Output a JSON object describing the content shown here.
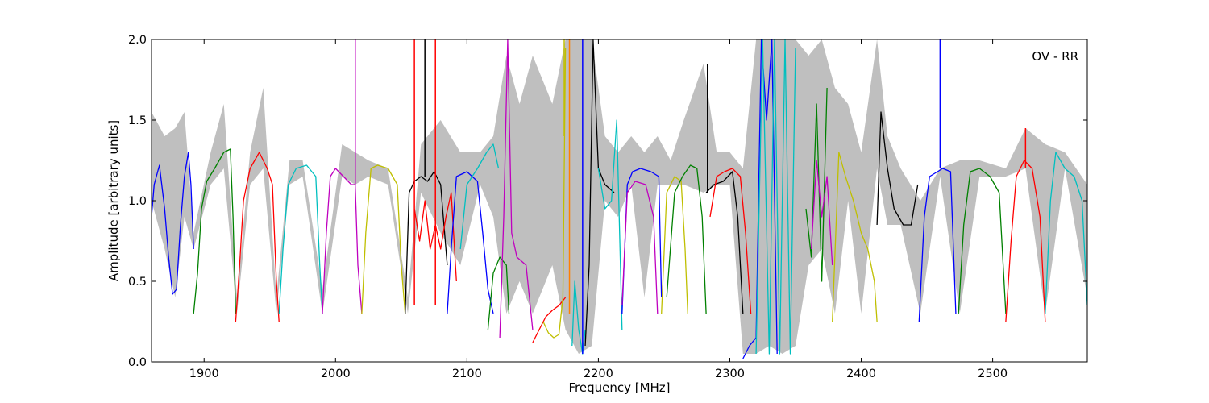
{
  "chart_data": {
    "type": "line",
    "title": "",
    "xlabel": "Frequency [MHz]",
    "ylabel": "Amplitude [arbitrary units]",
    "annotation": "OV - RR",
    "xlim": [
      1860,
      2572
    ],
    "ylim": [
      0.0,
      2.0
    ],
    "xticks": [
      1900,
      2000,
      2100,
      2200,
      2300,
      2400,
      2500
    ],
    "yticks": [
      0.0,
      0.5,
      1.0,
      1.5,
      2.0
    ],
    "xtick_labels": [
      "1900",
      "2000",
      "2100",
      "2200",
      "2300",
      "2400",
      "2500"
    ],
    "ytick_labels": [
      "0.0",
      "0.5",
      "1.0",
      "1.5",
      "2.0"
    ],
    "grid": false,
    "legend": "none",
    "background_envelope": {
      "color": "#bfbfbf",
      "x": [
        1860,
        1870,
        1878,
        1885,
        1892,
        1905,
        1915,
        1925,
        1935,
        1945,
        1955,
        1965,
        1975,
        1990,
        2005,
        2015,
        2025,
        2040,
        2055,
        2065,
        2080,
        2095,
        2110,
        2120,
        2130,
        2140,
        2150,
        2165,
        2175,
        2185,
        2195,
        2205,
        2215,
        2225,
        2235,
        2245,
        2255,
        2265,
        2280,
        2290,
        2300,
        2310,
        2320,
        2330,
        2340,
        2350,
        2360,
        2370,
        2380,
        2390,
        2400,
        2412,
        2420,
        2430,
        2445,
        2460,
        2475,
        2490,
        2510,
        2525,
        2540,
        2555,
        2572
      ],
      "upper": [
        1.55,
        1.4,
        1.45,
        1.55,
        0.8,
        1.3,
        1.6,
        0.4,
        1.3,
        1.7,
        0.4,
        1.25,
        1.25,
        0.45,
        1.35,
        1.3,
        1.25,
        1.2,
        0.4,
        1.35,
        1.5,
        1.3,
        1.3,
        1.4,
        1.9,
        1.6,
        1.9,
        1.6,
        2.0,
        2.0,
        2.0,
        1.4,
        1.3,
        1.4,
        1.3,
        1.4,
        1.25,
        1.5,
        1.85,
        1.3,
        1.3,
        1.2,
        2.0,
        2.0,
        2.0,
        2.0,
        1.9,
        2.0,
        1.7,
        1.6,
        1.3,
        2.0,
        1.4,
        1.2,
        1.0,
        1.2,
        1.25,
        1.25,
        1.2,
        1.45,
        1.35,
        1.3,
        1.1
      ],
      "lower": [
        1.0,
        0.7,
        0.4,
        0.9,
        0.7,
        1.1,
        1.2,
        0.3,
        1.1,
        1.2,
        0.3,
        1.1,
        1.15,
        0.3,
        1.15,
        1.1,
        1.15,
        1.1,
        0.3,
        1.05,
        0.8,
        0.6,
        1.1,
        0.9,
        0.3,
        0.5,
        0.3,
        0.6,
        0.2,
        0.05,
        0.1,
        1.0,
        0.9,
        1.1,
        0.4,
        1.1,
        1.1,
        1.1,
        1.05,
        1.1,
        1.1,
        0.05,
        0.05,
        0.1,
        0.05,
        0.1,
        0.6,
        0.7,
        0.3,
        1.0,
        0.3,
        1.2,
        0.85,
        0.85,
        0.3,
        1.15,
        0.3,
        1.15,
        1.15,
        1.2,
        0.3,
        1.2,
        0.4
      ]
    },
    "series": [
      {
        "color": "#0000ff",
        "x": [
          1860,
          1862,
          1866,
          1870,
          1873,
          1876,
          1879,
          1882,
          1885,
          1888,
          1890,
          1892
        ],
        "y": [
          0.9,
          1.1,
          1.22,
          0.95,
          0.65,
          0.42,
          0.45,
          0.85,
          1.15,
          1.3,
          1.1,
          0.7
        ]
      },
      {
        "color": "#008000",
        "x": [
          1892,
          1895,
          1898,
          1902,
          1908,
          1915,
          1920,
          1922,
          1924
        ],
        "y": [
          0.3,
          0.55,
          0.95,
          1.12,
          1.2,
          1.3,
          1.32,
          0.9,
          0.3
        ]
      },
      {
        "color": "#ff0000",
        "x": [
          1924,
          1927,
          1930,
          1935,
          1942,
          1948,
          1952,
          1955,
          1957
        ],
        "y": [
          0.25,
          0.6,
          1.0,
          1.2,
          1.3,
          1.2,
          1.1,
          0.5,
          0.25
        ]
      },
      {
        "color": "#00bfbf",
        "x": [
          1957,
          1960,
          1964,
          1970,
          1978,
          1985,
          1988,
          1990
        ],
        "y": [
          0.3,
          0.7,
          1.1,
          1.2,
          1.22,
          1.15,
          0.6,
          0.3
        ]
      },
      {
        "color": "#bf00bf",
        "x": [
          1990,
          1993,
          1996,
          2000,
          2006,
          2012,
          2015,
          2017,
          2020
        ],
        "y": [
          0.3,
          0.8,
          1.15,
          1.2,
          1.15,
          1.1,
          1.1,
          0.6,
          0.3
        ]
      },
      {
        "color": "#bfbf00",
        "x": [
          2020,
          2023,
          2027,
          2032,
          2040,
          2047,
          2050,
          2053
        ],
        "y": [
          0.3,
          0.8,
          1.2,
          1.22,
          1.2,
          1.1,
          0.6,
          0.3
        ]
      },
      {
        "color": "#000000",
        "x": [
          2053,
          2056,
          2060,
          2065,
          2070,
          2075,
          2080,
          2085
        ],
        "y": [
          0.3,
          1.05,
          1.12,
          1.15,
          1.12,
          1.18,
          1.1,
          0.6
        ]
      },
      {
        "color": "#ff0000",
        "x": [
          2060,
          2064,
          2068,
          2072,
          2076,
          2080,
          2084,
          2088,
          2092
        ],
        "y": [
          0.95,
          0.75,
          1.0,
          0.7,
          0.85,
          0.7,
          0.9,
          1.05,
          0.5
        ]
      },
      {
        "color": "#0000ff",
        "x": [
          2085,
          2088,
          2092,
          2100,
          2108,
          2112,
          2116,
          2120
        ],
        "y": [
          0.3,
          0.7,
          1.15,
          1.18,
          1.12,
          0.8,
          0.45,
          0.3
        ]
      },
      {
        "color": "#00bfbf",
        "x": [
          2095,
          2100,
          2108,
          2115,
          2120,
          2124
        ],
        "y": [
          0.7,
          1.1,
          1.2,
          1.3,
          1.35,
          1.2
        ]
      },
      {
        "color": "#008000",
        "x": [
          2116,
          2120,
          2125,
          2130,
          2132
        ],
        "y": [
          0.2,
          0.55,
          0.65,
          0.6,
          0.3
        ]
      },
      {
        "color": "#bf00bf",
        "x": [
          2125,
          2128,
          2131,
          2134,
          2138,
          2145,
          2150
        ],
        "y": [
          0.15,
          0.9,
          2.0,
          0.8,
          0.65,
          0.6,
          0.2
        ]
      },
      {
        "color": "#ff0000",
        "x": [
          2150,
          2155,
          2160,
          2165,
          2170,
          2175
        ],
        "y": [
          0.12,
          0.2,
          0.28,
          0.32,
          0.35,
          0.4
        ]
      },
      {
        "color": "#bfbf00",
        "x": [
          2158,
          2162,
          2166,
          2170,
          2173,
          2175
        ],
        "y": [
          0.25,
          0.18,
          0.15,
          0.17,
          0.4,
          1.95
        ]
      },
      {
        "color": "#00bfbf",
        "x": [
          2180,
          2182,
          2185,
          2188,
          2190
        ],
        "y": [
          0.1,
          0.5,
          0.2,
          0.05,
          0.2
        ]
      },
      {
        "color": "#000000",
        "x": [
          2190,
          2193,
          2196,
          2200,
          2205,
          2212
        ],
        "y": [
          0.1,
          0.6,
          2.0,
          1.2,
          1.1,
          1.05
        ]
      },
      {
        "color": "#00bfbf",
        "x": [
          2200,
          2205,
          2210,
          2214,
          2218
        ],
        "y": [
          1.2,
          0.95,
          1.0,
          1.5,
          0.2
        ]
      },
      {
        "color": "#0000ff",
        "x": [
          2218,
          2222,
          2226,
          2232,
          2240,
          2246,
          2248
        ],
        "y": [
          0.3,
          1.1,
          1.18,
          1.2,
          1.18,
          1.15,
          0.4
        ]
      },
      {
        "color": "#bf00bf",
        "x": [
          2218,
          2222,
          2228,
          2236,
          2242,
          2245
        ],
        "y": [
          0.35,
          1.05,
          1.12,
          1.1,
          0.9,
          0.3
        ]
      },
      {
        "color": "#bfbf00",
        "x": [
          2248,
          2252,
          2258,
          2263,
          2266,
          2268
        ],
        "y": [
          0.3,
          1.05,
          1.15,
          1.12,
          0.7,
          0.3
        ]
      },
      {
        "color": "#008000",
        "x": [
          2252,
          2258,
          2264,
          2270,
          2275,
          2279,
          2282
        ],
        "y": [
          0.4,
          1.05,
          1.15,
          1.22,
          1.2,
          0.9,
          0.3
        ]
      },
      {
        "color": "#000000",
        "x": [
          2282,
          2288,
          2295,
          2302,
          2306,
          2310
        ],
        "y": [
          1.05,
          1.1,
          1.12,
          1.18,
          0.9,
          0.3
        ]
      },
      {
        "color": "#ff0000",
        "x": [
          2285,
          2290,
          2296,
          2302,
          2308,
          2312,
          2316
        ],
        "y": [
          0.9,
          1.15,
          1.18,
          1.2,
          1.15,
          0.8,
          0.3
        ]
      },
      {
        "color": "#0000ff",
        "x": [
          2310,
          2315,
          2320,
          2324,
          2328,
          2332,
          2336
        ],
        "y": [
          0.02,
          0.1,
          0.15,
          2.0,
          1.5,
          2.0,
          0.05
        ]
      },
      {
        "color": "#00bfbf",
        "x": [
          2320,
          2325,
          2330,
          2334,
          2338,
          2342,
          2346,
          2350
        ],
        "y": [
          0.05,
          2.0,
          0.05,
          2.0,
          0.05,
          2.0,
          0.05,
          1.95
        ]
      },
      {
        "color": "#008000",
        "x": [
          2358,
          2362,
          2366,
          2370,
          2374
        ],
        "y": [
          0.95,
          0.65,
          1.6,
          0.5,
          1.7
        ]
      },
      {
        "color": "#bf00bf",
        "x": [
          2362,
          2366,
          2370,
          2374,
          2378
        ],
        "y": [
          0.7,
          1.25,
          0.9,
          1.15,
          0.6
        ]
      },
      {
        "color": "#bfbf00",
        "x": [
          2378,
          2383,
          2388,
          2394,
          2400,
          2405,
          2410,
          2412
        ],
        "y": [
          0.25,
          1.3,
          1.15,
          1.0,
          0.8,
          0.7,
          0.5,
          0.25
        ]
      },
      {
        "color": "#000000",
        "x": [
          2412,
          2415,
          2420,
          2425,
          2432,
          2438,
          2443
        ],
        "y": [
          0.85,
          1.55,
          1.2,
          0.95,
          0.85,
          0.85,
          1.1
        ]
      },
      {
        "color": "#0000ff",
        "x": [
          2444,
          2448,
          2452,
          2458,
          2462,
          2468,
          2472
        ],
        "y": [
          0.25,
          0.9,
          1.15,
          1.18,
          1.2,
          1.18,
          0.3
        ]
      },
      {
        "color": "#008000",
        "x": [
          2474,
          2478,
          2483,
          2490,
          2498,
          2505,
          2510
        ],
        "y": [
          0.3,
          0.85,
          1.18,
          1.2,
          1.15,
          1.05,
          0.3
        ]
      },
      {
        "color": "#ff0000",
        "x": [
          2510,
          2514,
          2518,
          2524,
          2530,
          2536,
          2540
        ],
        "y": [
          0.25,
          0.75,
          1.15,
          1.25,
          1.2,
          0.9,
          0.25
        ]
      },
      {
        "color": "#00bfbf",
        "x": [
          2540,
          2544,
          2548,
          2555,
          2562,
          2568,
          2572
        ],
        "y": [
          0.3,
          1.0,
          1.3,
          1.2,
          1.15,
          1.0,
          0.35
        ]
      }
    ],
    "spikes": [
      {
        "color": "#0000ff",
        "x": 1860,
        "y0": 0.8,
        "y1": 2.0
      },
      {
        "color": "#bf00bf",
        "x": 2015,
        "y0": 1.1,
        "y1": 2.0
      },
      {
        "color": "#ff0000",
        "x": 2060,
        "y0": 0.35,
        "y1": 2.0
      },
      {
        "color": "#000000",
        "x": 2068,
        "y0": 1.15,
        "y1": 2.0
      },
      {
        "color": "#ff0000",
        "x": 2076,
        "y0": 0.35,
        "y1": 2.0
      },
      {
        "color": "#bfbf00",
        "x": 2174,
        "y0": 1.4,
        "y1": 2.0
      },
      {
        "color": "#ff8000",
        "x": 2178,
        "y0": 0.3,
        "y1": 2.0
      },
      {
        "color": "#0000ff",
        "x": 2188,
        "y0": 0.05,
        "y1": 2.0
      },
      {
        "color": "#000000",
        "x": 2283,
        "y0": 1.05,
        "y1": 1.85
      },
      {
        "color": "#0000ff",
        "x": 2460,
        "y0": 1.2,
        "y1": 2.0
      },
      {
        "color": "#ff0000",
        "x": 2525,
        "y0": 1.2,
        "y1": 1.45
      }
    ]
  }
}
